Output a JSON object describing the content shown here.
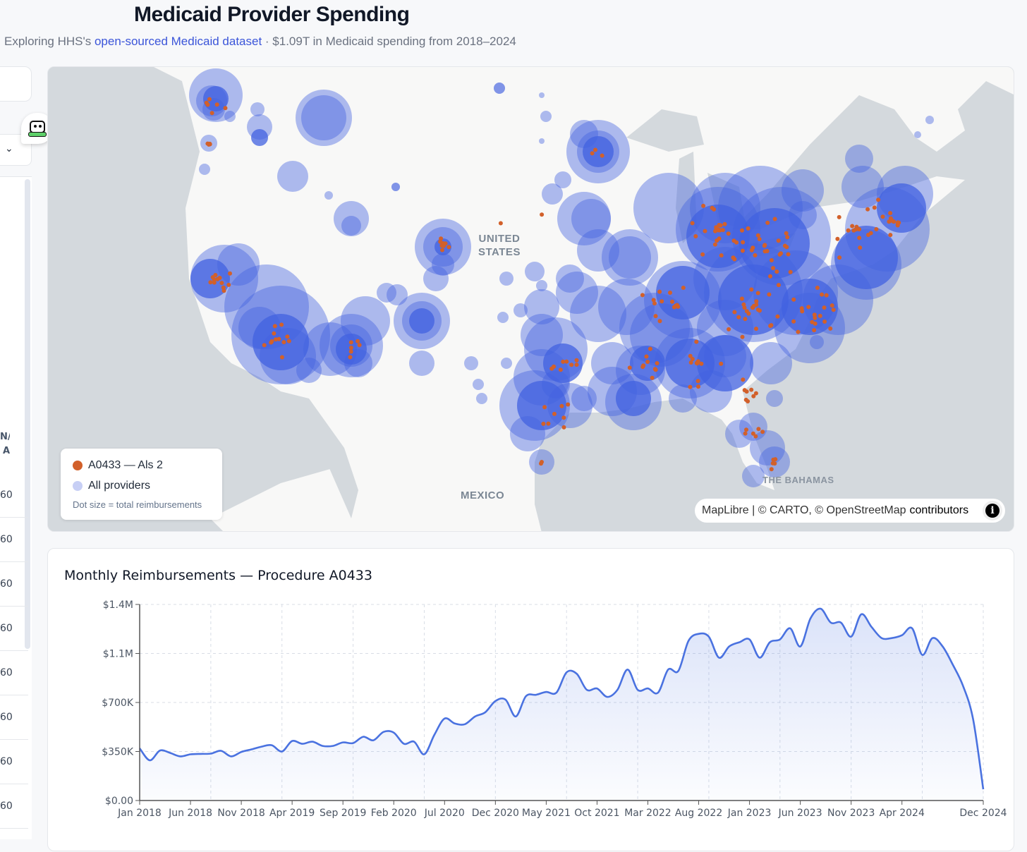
{
  "header": {
    "title": "Medicaid Provider Spending",
    "subtitle_prefix": "Exploring HHS's ",
    "subtitle_link": "open-sourced Medicaid dataset",
    "subtitle_suffix": " · $1.09T in Medicaid spending from 2018–2024"
  },
  "sidebar": {
    "table_header_partial": "N/ A",
    "row_values_partial": [
      "60",
      "60",
      "60",
      "60",
      "60",
      "60",
      "60",
      "60"
    ]
  },
  "assistant_icon": "robot-assistant-icon",
  "map": {
    "labels": {
      "country": "UNITED STATES",
      "mexico": "MEXICO",
      "bahamas": "THE BAHAMAS"
    },
    "legend": {
      "items": [
        {
          "label": "A0433 — Als 2",
          "color": "#d2602a"
        },
        {
          "label": "All providers",
          "color": "#c7cff5"
        }
      ],
      "note": "Dot size = total reimbursements"
    },
    "attribution": {
      "text": "MapLibre | © CARTO, © OpenStreetMap",
      "link": "contributors",
      "info_icon": "info-icon"
    },
    "colors": {
      "provider_bubble": "#4262e0",
      "procedure_dot": "#d2602a",
      "land": "#f8f8f7",
      "water": "#d4d9dd"
    }
  },
  "chart_data": {
    "type": "area",
    "title": "Monthly Reimbursements — Procedure A0433",
    "xlabel": "",
    "ylabel": "",
    "y_ticks": [
      "$0.00",
      "$350K",
      "$700K",
      "$1.1M",
      "$1.4M"
    ],
    "y_tick_values": [
      0,
      0.35,
      0.7,
      1.05,
      1.4
    ],
    "ylim": [
      0,
      1.4
    ],
    "y_unit": "millions USD",
    "x_tick_labels": [
      "Jan 2018",
      "Jun 2018",
      "Nov 2018",
      "Apr 2019",
      "Sep 2019",
      "Feb 2020",
      "Jul 2020",
      "Dec 2020",
      "May 2021",
      "Oct 2021",
      "Mar 2022",
      "Aug 2022",
      "Jan 2023",
      "Jun 2023",
      "Nov 2023",
      "Apr 2024",
      "Dec 2024"
    ],
    "x_tick_month_index": [
      0,
      5,
      10,
      15,
      20,
      25,
      30,
      35,
      40,
      45,
      50,
      55,
      60,
      65,
      70,
      75,
      83
    ],
    "grid": true,
    "line_color": "#4a72e0",
    "start": "Jan 2018",
    "end": "Dec 2024",
    "series": [
      {
        "name": "Monthly Reimbursements",
        "values": [
          0.373,
          0.287,
          0.357,
          0.34,
          0.315,
          0.33,
          0.333,
          0.335,
          0.355,
          0.315,
          0.347,
          0.365,
          0.385,
          0.395,
          0.35,
          0.425,
          0.405,
          0.42,
          0.39,
          0.39,
          0.415,
          0.41,
          0.455,
          0.43,
          0.49,
          0.485,
          0.405,
          0.42,
          0.33,
          0.47,
          0.585,
          0.55,
          0.545,
          0.6,
          0.63,
          0.71,
          0.72,
          0.6,
          0.745,
          0.755,
          0.775,
          0.77,
          0.915,
          0.905,
          0.79,
          0.8,
          0.74,
          0.79,
          0.935,
          0.79,
          0.8,
          0.77,
          0.935,
          0.925,
          1.14,
          1.19,
          1.17,
          1.02,
          1.1,
          1.13,
          1.15,
          1.02,
          1.13,
          1.15,
          1.23,
          1.1,
          1.3,
          1.37,
          1.27,
          1.27,
          1.17,
          1.33,
          1.24,
          1.16,
          1.16,
          1.18,
          1.23,
          1.04,
          1.16,
          1.1,
          0.97,
          0.82,
          0.58,
          0.08
        ]
      }
    ]
  }
}
